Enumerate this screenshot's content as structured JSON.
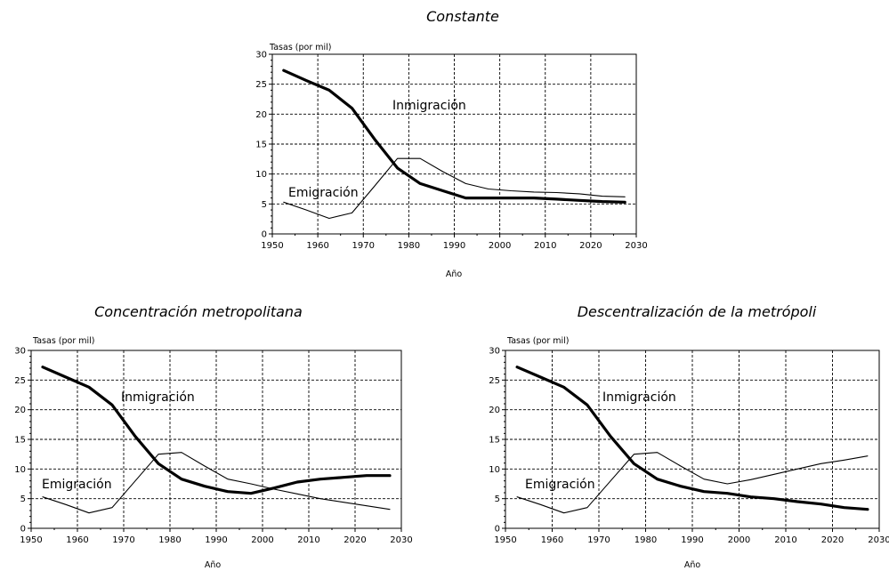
{
  "chart_data": [
    {
      "type": "line",
      "title": "Constante",
      "xlabel": "Año",
      "ylabel": "Tasas (por mil)",
      "xlim": [
        1950,
        2030
      ],
      "ylim": [
        0,
        30
      ],
      "xticks": [
        "1950",
        "1960",
        "1970",
        "1980",
        "1990",
        "2000",
        "2010",
        "2020",
        "2030"
      ],
      "yticks": [
        "0",
        "5",
        "10",
        "15",
        "20",
        "25",
        "30"
      ],
      "grid": true,
      "annotations": [
        "Inmigración",
        "Emigración"
      ],
      "series": [
        {
          "name": "Inmigración",
          "style": "thick",
          "x": [
            1952.5,
            1957.5,
            1962.5,
            1967.5,
            1972.5,
            1977.5,
            1982.5,
            1987.5,
            1992.5,
            1997.5,
            2002.5,
            2007.5,
            2012.5,
            2017.5,
            2022.5,
            2027.5
          ],
          "y": [
            27.3,
            25.6,
            24.0,
            21.0,
            15.8,
            11.0,
            8.4,
            7.2,
            6.0,
            6.0,
            6.0,
            6.0,
            5.8,
            5.6,
            5.4,
            5.3
          ]
        },
        {
          "name": "Emigración",
          "style": "thin",
          "x": [
            1952.5,
            1957.5,
            1962.5,
            1967.5,
            1972.5,
            1977.5,
            1982.5,
            1987.5,
            1992.5,
            1997.5,
            2002.5,
            2007.5,
            2012.5,
            2017.5,
            2022.5,
            2027.5
          ],
          "y": [
            5.3,
            4.0,
            2.6,
            3.5,
            8.0,
            12.6,
            12.6,
            10.4,
            8.4,
            7.5,
            7.2,
            7.0,
            6.9,
            6.7,
            6.3,
            6.2
          ]
        }
      ]
    },
    {
      "type": "line",
      "title": "Concentración metropolitana",
      "xlabel": "Año",
      "ylabel": "Tasas (por mil)",
      "xlim": [
        1950,
        2030
      ],
      "ylim": [
        0,
        30
      ],
      "xticks": [
        "1950",
        "1960",
        "1970",
        "1980",
        "1990",
        "2000",
        "2010",
        "2020",
        "2030"
      ],
      "yticks": [
        "0",
        "5",
        "10",
        "15",
        "20",
        "25",
        "30"
      ],
      "grid": true,
      "annotations": [
        "Inmigración",
        "Emigración"
      ],
      "series": [
        {
          "name": "Inmigración",
          "style": "thick",
          "x": [
            1952.5,
            1957.5,
            1962.5,
            1967.5,
            1972.5,
            1977.5,
            1982.5,
            1987.5,
            1992.5,
            1997.5,
            2002.5,
            2007.5,
            2012.5,
            2017.5,
            2022.5,
            2027.5
          ],
          "y": [
            27.2,
            25.5,
            23.8,
            20.8,
            15.5,
            10.9,
            8.3,
            7.1,
            6.2,
            5.9,
            6.8,
            7.8,
            8.3,
            8.6,
            8.9,
            8.9
          ]
        },
        {
          "name": "Emigración",
          "style": "thin",
          "x": [
            1952.5,
            1957.5,
            1962.5,
            1967.5,
            1972.5,
            1977.5,
            1982.5,
            1987.5,
            1992.5,
            1997.5,
            2002.5,
            2007.5,
            2012.5,
            2017.5,
            2022.5,
            2027.5
          ],
          "y": [
            5.3,
            4.0,
            2.6,
            3.5,
            8.0,
            12.5,
            12.8,
            10.5,
            8.3,
            7.5,
            6.6,
            5.8,
            5.0,
            4.4,
            3.8,
            3.2
          ]
        }
      ]
    },
    {
      "type": "line",
      "title": "Descentralización de la metrópoli",
      "xlabel": "Año",
      "ylabel": "Tasas (por mil)",
      "xlim": [
        1950,
        2030
      ],
      "ylim": [
        0,
        30
      ],
      "xticks": [
        "1950",
        "1960",
        "1970",
        "1980",
        "1990",
        "2000",
        "2010",
        "2020",
        "2030"
      ],
      "yticks": [
        "0",
        "5",
        "10",
        "15",
        "20",
        "25",
        "30"
      ],
      "grid": true,
      "annotations": [
        "Inmigración",
        "Emigración"
      ],
      "series": [
        {
          "name": "Inmigración",
          "style": "thick",
          "x": [
            1952.5,
            1957.5,
            1962.5,
            1967.5,
            1972.5,
            1977.5,
            1982.5,
            1987.5,
            1992.5,
            1997.5,
            2002.5,
            2007.5,
            2012.5,
            2017.5,
            2022.5,
            2027.5
          ],
          "y": [
            27.2,
            25.5,
            23.8,
            20.8,
            15.5,
            10.9,
            8.3,
            7.1,
            6.2,
            5.9,
            5.3,
            5.0,
            4.5,
            4.1,
            3.5,
            3.2
          ]
        },
        {
          "name": "Emigración",
          "style": "thin",
          "x": [
            1952.5,
            1957.5,
            1962.5,
            1967.5,
            1972.5,
            1977.5,
            1982.5,
            1987.5,
            1992.5,
            1997.5,
            2002.5,
            2007.5,
            2012.5,
            2017.5,
            2022.5,
            2027.5
          ],
          "y": [
            5.3,
            4.0,
            2.6,
            3.5,
            8.0,
            12.5,
            12.8,
            10.5,
            8.3,
            7.5,
            8.2,
            9.1,
            10.0,
            10.9,
            11.5,
            12.2
          ]
        }
      ]
    }
  ]
}
